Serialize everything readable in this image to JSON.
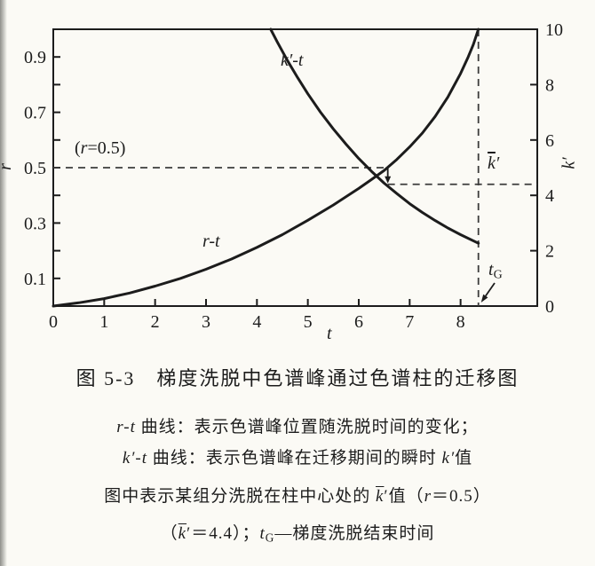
{
  "page": {
    "background": "#fbfaf5",
    "ink": "#1c1c1c",
    "dash_color": "#3c3c3c"
  },
  "chart_data": {
    "type": "line",
    "title": "图 5-3　梯度洗脱中色谱峰通过色谱柱的迁移图",
    "xlabel": "t",
    "ylabel_left": "r",
    "ylabel_right": "k′",
    "xlim": [
      0,
      9.5
    ],
    "ylim_left": [
      0,
      1.0
    ],
    "ylim_right": [
      0,
      10
    ],
    "grid": false,
    "x_ticks": [
      0,
      1,
      2,
      3,
      4,
      5,
      6,
      7,
      8
    ],
    "r_ticks": [
      0.1,
      0.2,
      0.3,
      0.4,
      0.5,
      0.6,
      0.7,
      0.8,
      0.9
    ],
    "r_tick_labels": [
      0.1,
      0.3,
      0.5,
      0.7,
      0.9
    ],
    "k_ticks_marked": [
      2,
      4,
      6,
      8
    ],
    "k_tick_labels": [
      0,
      2,
      4,
      6,
      8,
      10
    ],
    "series": [
      {
        "name": "r-t",
        "axis": "left",
        "x": [
          0,
          0.5,
          1,
          1.5,
          2,
          2.5,
          3,
          3.5,
          4,
          4.5,
          5,
          5.5,
          6,
          6.25,
          6.5,
          6.75,
          7,
          7.25,
          7.5,
          7.75,
          8,
          8.15,
          8.25,
          8.35
        ],
        "y": [
          0,
          0.012,
          0.027,
          0.047,
          0.072,
          0.1,
          0.133,
          0.17,
          0.212,
          0.258,
          0.31,
          0.365,
          0.425,
          0.457,
          0.49,
          0.53,
          0.575,
          0.625,
          0.685,
          0.755,
          0.84,
          0.9,
          0.945,
          1.0
        ]
      },
      {
        "name": "k′-t",
        "axis": "right",
        "x": [
          4.27,
          4.4,
          4.6,
          4.8,
          5,
          5.25,
          5.5,
          5.75,
          6,
          6.25,
          6.5,
          6.75,
          7,
          7.25,
          7.5,
          7.75,
          8,
          8.35
        ],
        "y": [
          10,
          9.54,
          8.87,
          8.25,
          7.67,
          7.0,
          6.4,
          5.85,
          5.33,
          4.87,
          4.44,
          4.06,
          3.7,
          3.38,
          3.09,
          2.82,
          2.58,
          2.27
        ]
      }
    ],
    "annotations": {
      "r_half_value": 0.5,
      "t_at_r_half": 6.57,
      "kbar_value": 4.4,
      "t_G": 8.35
    }
  },
  "plot_labels": {
    "r_half": [
      {
        "t": "("
      },
      {
        "t": "r",
        "s": "i"
      },
      {
        "t": "=0.5)"
      }
    ],
    "kt_curve": [
      {
        "t": "k′-t",
        "s": "i"
      }
    ],
    "rt_curve": [
      {
        "t": "r-t",
        "s": "i"
      }
    ],
    "kbar": [
      {
        "t": "k",
        "s": "i ov"
      },
      {
        "t": "′",
        "s": "i"
      }
    ],
    "tG": [
      {
        "t": "t",
        "s": "i"
      },
      {
        "t": "G",
        "s": "sub"
      }
    ],
    "axis_r": [
      {
        "t": "r",
        "s": "i"
      }
    ],
    "axis_k": [
      {
        "t": "k′",
        "s": "i"
      }
    ],
    "axis_t": [
      {
        "t": "t",
        "s": "i"
      }
    ]
  },
  "caption": {
    "title": "图 5-3　梯度洗脱中色谱峰通过色谱柱的迁移图",
    "lines": [
      {
        "segments": [
          {
            "t": "r-t",
            "s": "i"
          },
          {
            "t": " 曲线：表示色谱峰位置随洗脱时间的变化；"
          }
        ]
      },
      {
        "segments": [
          {
            "t": "k′-t",
            "s": "i"
          },
          {
            "t": " 曲线：表示色谱峰在迁移期间的瞬时 "
          },
          {
            "t": "k′",
            "s": "i"
          },
          {
            "t": "值"
          }
        ]
      },
      {
        "segments": [
          {
            "t": "图中表示某组分洗脱在柱中心处的 "
          },
          {
            "t": "k",
            "s": "i ov"
          },
          {
            "t": "′值（"
          },
          {
            "t": "r",
            "s": "i"
          },
          {
            "t": "＝0.5）"
          }
        ]
      },
      {
        "segments": [
          {
            "t": "（"
          },
          {
            "t": "k",
            "s": "i ov"
          },
          {
            "t": "′＝4.4）；"
          },
          {
            "t": "t",
            "s": "i"
          },
          {
            "t": "G",
            "s": "sub"
          },
          {
            "t": "—梯度洗脱结束时间"
          }
        ]
      }
    ]
  }
}
